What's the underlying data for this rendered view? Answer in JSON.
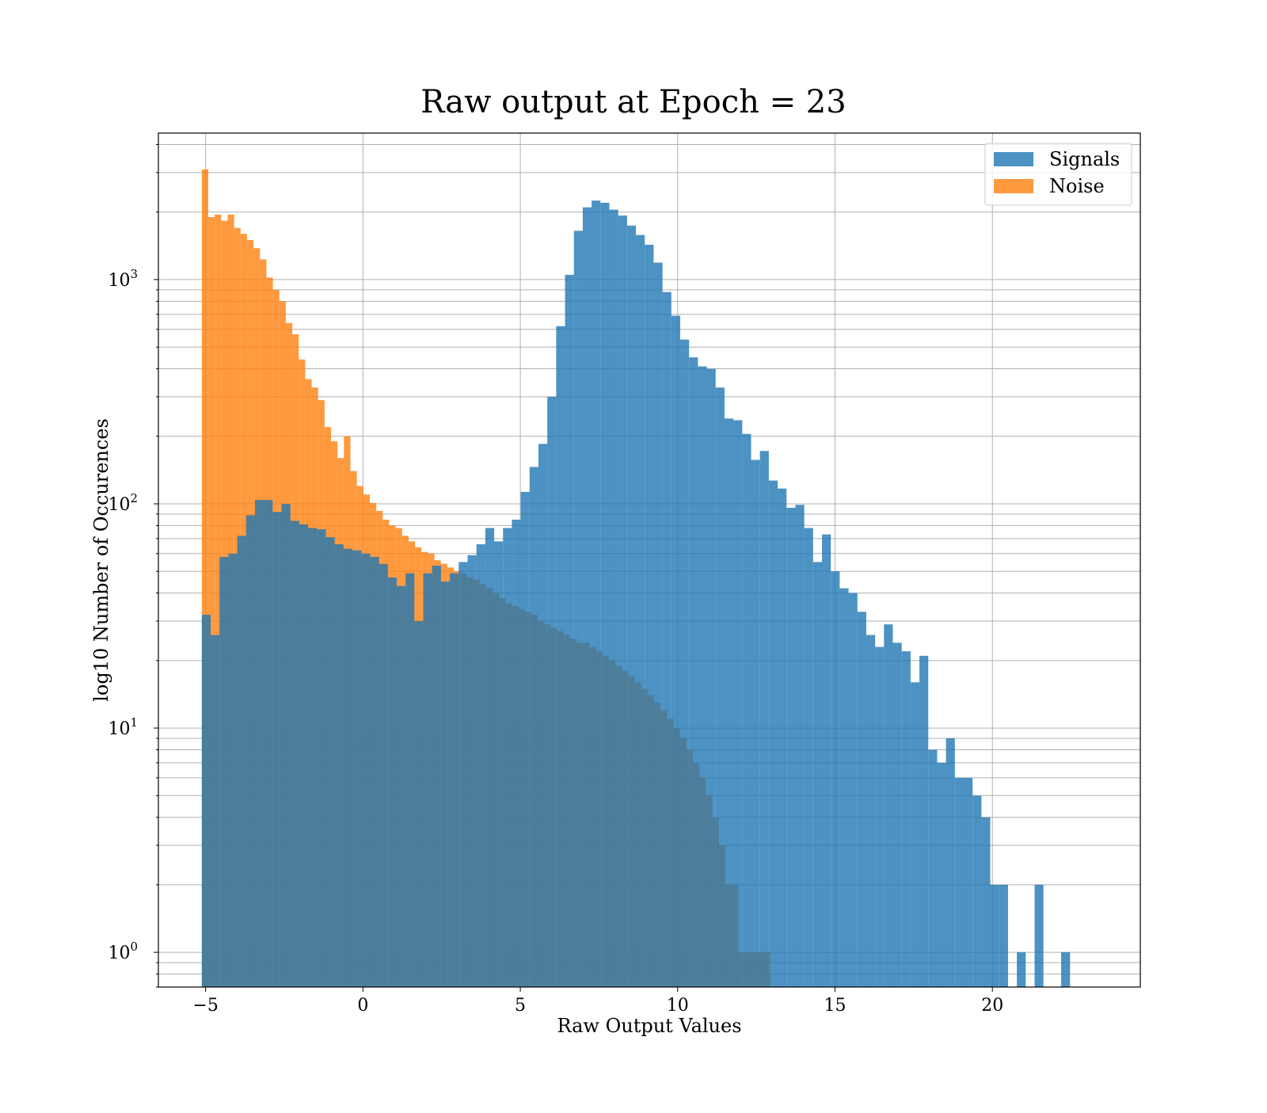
{
  "chart_data": {
    "type": "bar",
    "title": "Raw output at Epoch = 23",
    "xlabel": "Raw Output Values",
    "ylabel": "log10 Number of Occurences",
    "xlim": [
      -6.5,
      24.7
    ],
    "ylim": [
      0.7,
      4500
    ],
    "yscale": "log",
    "grid": true,
    "legend_position": "top-right",
    "x_ticks": [
      -5,
      0,
      5,
      10,
      15,
      20
    ],
    "x_tick_labels": [
      "−5",
      "0",
      "5",
      "10",
      "15",
      "20"
    ],
    "y_ticks": [
      1,
      10,
      100,
      1000
    ],
    "y_tick_labels": [
      {
        "base": "10",
        "exp": "0"
      },
      {
        "base": "10",
        "exp": "1"
      },
      {
        "base": "10",
        "exp": "2"
      },
      {
        "base": "10",
        "exp": "3"
      }
    ],
    "series": [
      {
        "name": "Signals",
        "color": "#1f77b4",
        "opacity": 0.8,
        "x_start": -5.12,
        "bin_width": 0.2815,
        "values": [
          32,
          26,
          58,
          60,
          72,
          89,
          104,
          104,
          92,
          100,
          84,
          81,
          78,
          77,
          71,
          66,
          63,
          62,
          60,
          58,
          54,
          47,
          43,
          49,
          30,
          49,
          53,
          45,
          49,
          55,
          59,
          66,
          78,
          68,
          78,
          85,
          113,
          146,
          185,
          300,
          620,
          1050,
          1650,
          2100,
          2250,
          2200,
          2050,
          1930,
          1740,
          1580,
          1430,
          1190,
          880,
          690,
          540,
          450,
          410,
          400,
          330,
          240,
          236,
          205,
          157,
          172,
          127,
          117,
          96,
          99,
          78,
          55,
          73,
          50,
          42,
          40,
          33,
          26,
          23,
          29,
          24,
          22,
          16,
          21,
          8,
          7,
          9,
          6,
          6,
          5,
          4,
          2,
          2,
          0,
          1,
          0,
          2,
          0,
          0,
          1
        ]
      },
      {
        "name": "Noise",
        "color": "#ff7f0e",
        "opacity": 0.8,
        "x_start": -5.12,
        "bin_width": 0.2053,
        "values": [
          3100,
          1900,
          1950,
          1830,
          1950,
          1700,
          1600,
          1500,
          1380,
          1230,
          1020,
          900,
          800,
          640,
          570,
          440,
          360,
          330,
          290,
          220,
          190,
          160,
          200,
          140,
          120,
          110,
          101,
          93,
          85,
          80,
          78,
          72,
          68,
          64,
          61,
          60,
          56,
          54,
          52,
          50,
          49,
          47,
          46,
          44,
          42,
          40,
          38,
          36,
          35,
          34,
          33,
          32,
          30,
          29,
          28,
          27,
          26,
          25,
          24,
          24,
          23,
          22,
          21,
          20,
          19,
          18,
          17,
          16,
          15,
          14,
          13,
          12,
          11,
          10,
          9,
          8,
          7,
          6,
          5,
          4,
          3,
          2,
          2,
          1,
          1,
          1,
          1,
          1
        ]
      }
    ]
  }
}
